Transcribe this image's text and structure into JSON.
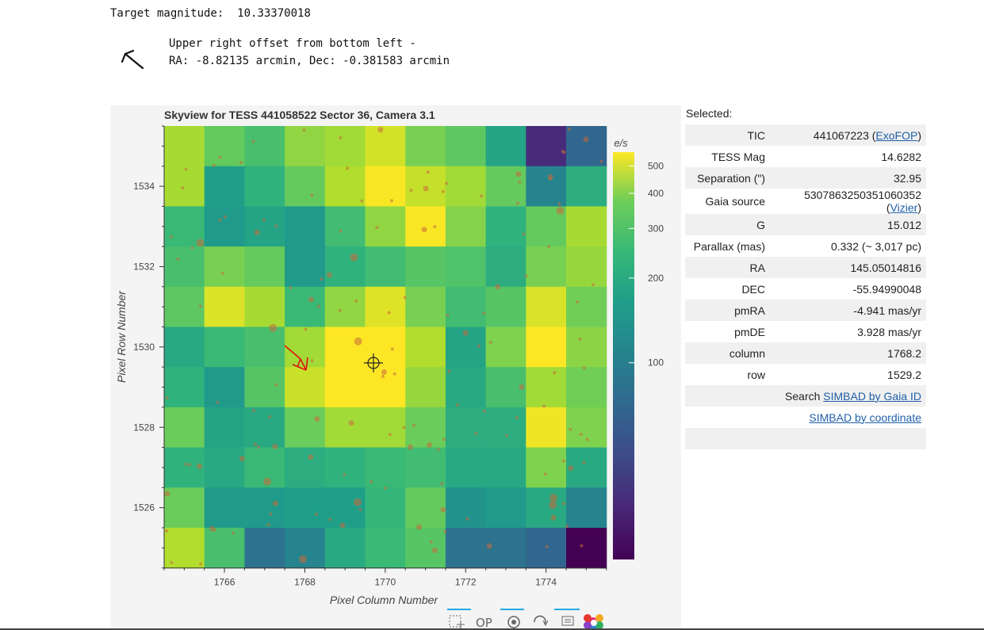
{
  "target": {
    "label": "Target magnitude:",
    "value": "10.33370018"
  },
  "offset": {
    "line1": "Upper right offset from bottom left -",
    "line2": "RA: -8.82135 arcmin, Dec: -0.381583 arcmin",
    "icon": "arrow-up-left-icon"
  },
  "plot": {
    "title": "Skyview for TESS 441058522 Sector 36, Camera 3.1",
    "xlabel": "Pixel Column Number",
    "ylabel": "Pixel Row Number",
    "colorbar_label": "e/s",
    "colorbar_ticks": [
      "500",
      "400",
      "300",
      "200",
      "100"
    ],
    "toolbar": [
      "box-zoom-icon",
      "wheel-zoom-icon",
      "pan-icon",
      "reset-icon",
      "hover-icon",
      "bokeh-logo-icon"
    ]
  },
  "chart_data": {
    "type": "heatmap",
    "title": "Skyview for TESS 441058522 Sector 36, Camera 3.1",
    "xlabel": "Pixel Column Number",
    "ylabel": "Pixel Row Number",
    "x_ticks": [
      1766,
      1768,
      1770,
      1772,
      1774
    ],
    "y_ticks": [
      1526,
      1528,
      1530,
      1532,
      1534
    ],
    "xlim": [
      1764.5,
      1775.5
    ],
    "ylim": [
      1524.5,
      1535.5
    ],
    "colorbar": {
      "label": "e/s",
      "scale": "log",
      "ticks": [
        500,
        400,
        300,
        200,
        100
      ]
    },
    "columns": [
      1765,
      1766,
      1767,
      1768,
      1769,
      1770,
      1771,
      1772,
      1773,
      1774,
      1775
    ],
    "rows_top_to_bottom": [
      1535,
      1534,
      1533,
      1532,
      1531,
      1530,
      1529,
      1528,
      1527,
      1526,
      1525
    ],
    "values": [
      [
        360,
        250,
        210,
        320,
        350,
        450,
        280,
        240,
        140,
        30,
        60
      ],
      [
        360,
        130,
        170,
        250,
        380,
        550,
        420,
        350,
        250,
        90,
        160
      ],
      [
        190,
        120,
        140,
        120,
        200,
        320,
        550,
        300,
        170,
        250,
        360
      ],
      [
        210,
        280,
        250,
        120,
        170,
        200,
        230,
        220,
        160,
        280,
        330
      ],
      [
        240,
        470,
        360,
        190,
        320,
        480,
        280,
        200,
        230,
        460,
        270
      ],
      [
        150,
        190,
        210,
        350,
        580,
        580,
        380,
        140,
        290,
        560,
        310
      ],
      [
        170,
        120,
        230,
        430,
        580,
        580,
        330,
        150,
        210,
        350,
        270
      ],
      [
        260,
        140,
        150,
        260,
        350,
        350,
        260,
        160,
        160,
        520,
        290
      ],
      [
        170,
        150,
        190,
        160,
        170,
        190,
        200,
        150,
        150,
        290,
        150
      ],
      [
        260,
        120,
        120,
        130,
        130,
        180,
        250,
        110,
        120,
        150,
        90
      ],
      [
        380,
        210,
        70,
        90,
        150,
        190,
        230,
        70,
        70,
        60,
        20
      ]
    ]
  },
  "selected": {
    "title": "Selected:",
    "rows": [
      {
        "key": "TIC",
        "value": "441067223 (",
        "link": "ExoFOP",
        "after": ")"
      },
      {
        "key": "TESS Mag",
        "value": "14.6282"
      },
      {
        "key": "Separation (\")",
        "value": "32.95"
      },
      {
        "key": "Gaia source",
        "value": "5307863250351060352 (",
        "link": "Vizier",
        "after": ")"
      },
      {
        "key": "G",
        "value": "15.012"
      },
      {
        "key": "Parallax (mas)",
        "value": "0.332 (~ 3,017 pc)"
      },
      {
        "key": "RA",
        "value": "145.05014816"
      },
      {
        "key": "DEC",
        "value": "-55.94990048"
      },
      {
        "key": "pmRA",
        "value": "-4.941 mas/yr"
      },
      {
        "key": "pmDE",
        "value": "3.928 mas/yr"
      },
      {
        "key": "column",
        "value": "1768.2"
      },
      {
        "key": "row",
        "value": "1529.2"
      }
    ],
    "search_label": "Search",
    "simbad_gaia": "SIMBAD by Gaia ID",
    "simbad_coord": "SIMBAD by coordinate"
  }
}
